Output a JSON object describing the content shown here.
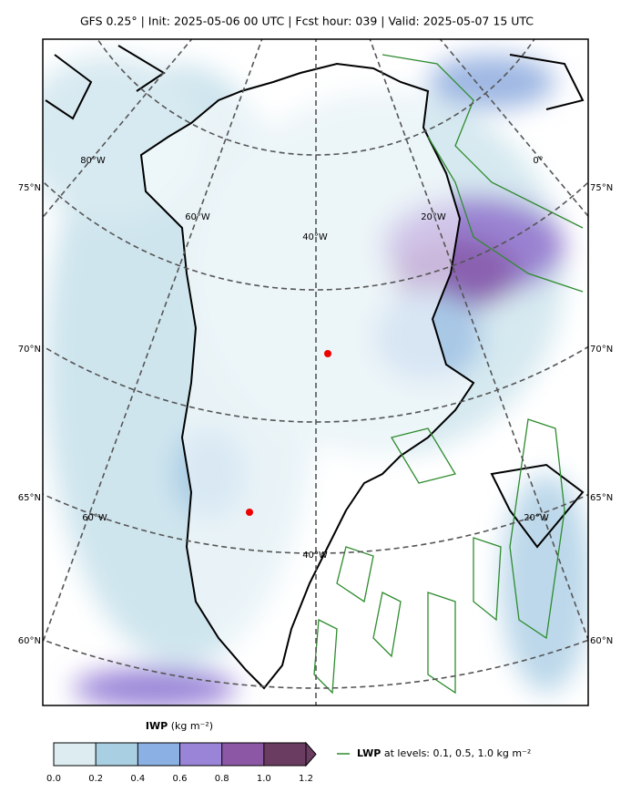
{
  "header": {
    "title": "GFS 0.25° | Init: 2025-05-06 00 UTC | Fcst hour: 039 | Valid: 2025-05-07 15 UTC"
  },
  "map": {
    "lat_labels": [
      "75°N",
      "70°N",
      "65°N",
      "60°N"
    ],
    "lon_labels_upper": [
      "80°W",
      "60°W",
      "40°W",
      "20°W",
      "0°"
    ],
    "lon_labels_lower": [
      "60°W",
      "40°W",
      "20°W"
    ]
  },
  "colorbar": {
    "name": "IWP",
    "unit": "(kg m⁻²)",
    "lim": [
      0,
      1.2
    ],
    "ticks": [
      {
        "value": 0,
        "label": "0.0"
      },
      0.2,
      0.4,
      0.6,
      0.8,
      {
        "value": 1,
        "label": "1.0"
      },
      1.2
    ],
    "colors": [
      "#dcecf0",
      "#a9d0e2",
      "#8bb0e4",
      "#9a84d8",
      "#8c58a6",
      "#6b3c62"
    ]
  },
  "legend": {
    "name": "LWP",
    "text": "at levels: 0.1, 0.5, 1.0  kg m⁻²",
    "color": "#2e8b2e"
  }
}
